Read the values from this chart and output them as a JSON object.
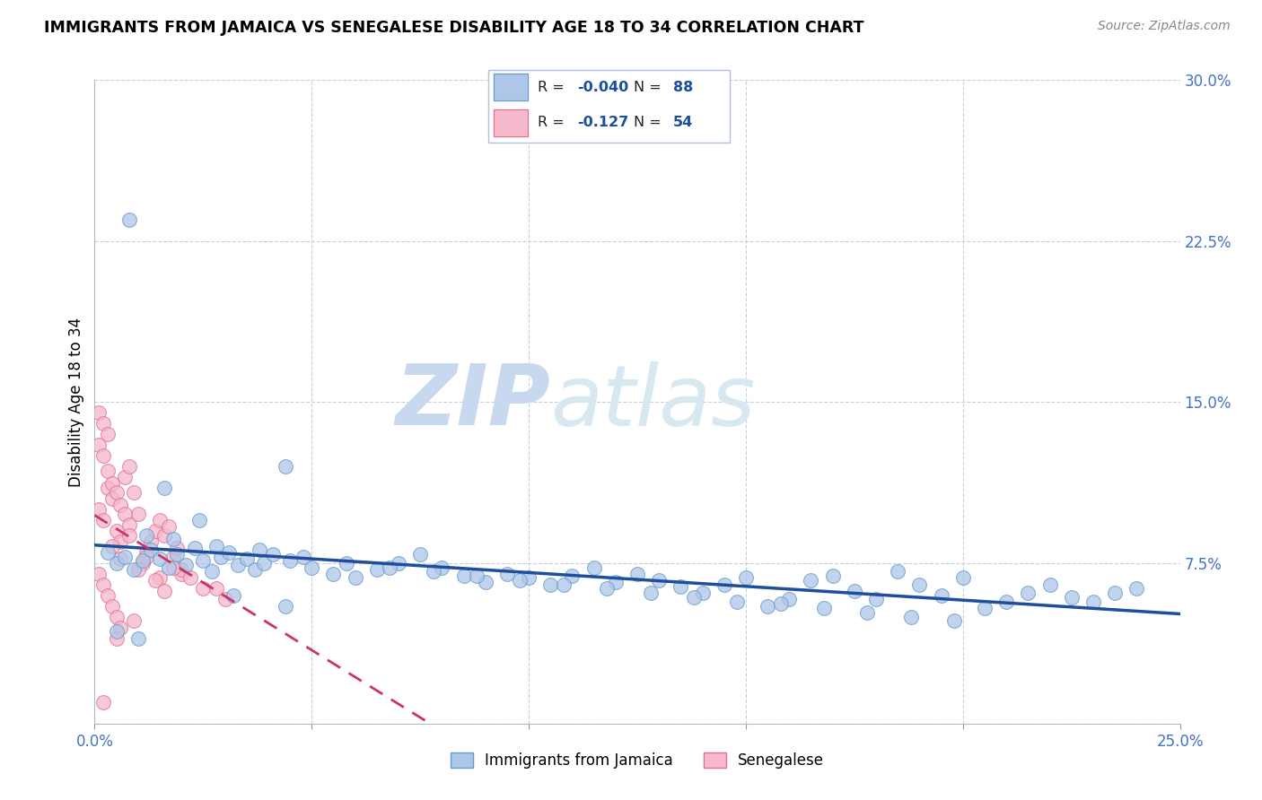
{
  "title": "IMMIGRANTS FROM JAMAICA VS SENEGALESE DISABILITY AGE 18 TO 34 CORRELATION CHART",
  "source": "Source: ZipAtlas.com",
  "ylabel": "Disability Age 18 to 34",
  "xlim": [
    0.0,
    0.25
  ],
  "ylim": [
    0.0,
    0.3
  ],
  "xticks": [
    0.0,
    0.05,
    0.1,
    0.15,
    0.2,
    0.25
  ],
  "yticks": [
    0.0,
    0.075,
    0.15,
    0.225,
    0.3
  ],
  "series1_name": "Immigrants from Jamaica",
  "series1_color": "#aec6e8",
  "series1_edge_color": "#6699cc",
  "series1_line_color": "#1f4e9c",
  "series1_R": -0.04,
  "series1_N": 88,
  "series2_name": "Senegalese",
  "series2_color": "#f5b8cc",
  "series2_edge_color": "#e07090",
  "series2_line_color": "#cc3366",
  "series2_R": -0.127,
  "series2_N": 54,
  "legend_color": "#1a4fa0",
  "watermark_zip": "ZIP",
  "watermark_atlas": "atlas",
  "watermark_color": "#c8d8ee",
  "background_color": "#ffffff",
  "grid_color": "#c8d0de",
  "title_fontsize": 12.5,
  "tick_label_color": "#4472c4",
  "jamaica_x": [
    0.003,
    0.005,
    0.007,
    0.009,
    0.011,
    0.013,
    0.015,
    0.017,
    0.019,
    0.021,
    0.023,
    0.025,
    0.027,
    0.029,
    0.031,
    0.033,
    0.035,
    0.037,
    0.039,
    0.041,
    0.045,
    0.05,
    0.055,
    0.06,
    0.065,
    0.07,
    0.075,
    0.08,
    0.085,
    0.09,
    0.095,
    0.1,
    0.105,
    0.11,
    0.115,
    0.12,
    0.125,
    0.13,
    0.135,
    0.14,
    0.145,
    0.15,
    0.155,
    0.16,
    0.165,
    0.17,
    0.175,
    0.18,
    0.185,
    0.19,
    0.195,
    0.2,
    0.205,
    0.21,
    0.215,
    0.22,
    0.225,
    0.23,
    0.235,
    0.24,
    0.012,
    0.018,
    0.028,
    0.038,
    0.048,
    0.058,
    0.068,
    0.078,
    0.088,
    0.098,
    0.108,
    0.118,
    0.128,
    0.138,
    0.148,
    0.158,
    0.168,
    0.178,
    0.188,
    0.198,
    0.008,
    0.016,
    0.024,
    0.032,
    0.044,
    0.044,
    0.005,
    0.01
  ],
  "jamaica_y": [
    0.08,
    0.075,
    0.078,
    0.072,
    0.076,
    0.081,
    0.077,
    0.073,
    0.079,
    0.074,
    0.082,
    0.076,
    0.071,
    0.078,
    0.08,
    0.074,
    0.077,
    0.072,
    0.075,
    0.079,
    0.076,
    0.073,
    0.07,
    0.068,
    0.072,
    0.075,
    0.079,
    0.073,
    0.069,
    0.066,
    0.07,
    0.068,
    0.065,
    0.069,
    0.073,
    0.066,
    0.07,
    0.067,
    0.064,
    0.061,
    0.065,
    0.068,
    0.055,
    0.058,
    0.067,
    0.069,
    0.062,
    0.058,
    0.071,
    0.065,
    0.06,
    0.068,
    0.054,
    0.057,
    0.061,
    0.065,
    0.059,
    0.057,
    0.061,
    0.063,
    0.088,
    0.086,
    0.083,
    0.081,
    0.078,
    0.075,
    0.073,
    0.071,
    0.069,
    0.067,
    0.065,
    0.063,
    0.061,
    0.059,
    0.057,
    0.056,
    0.054,
    0.052,
    0.05,
    0.048,
    0.235,
    0.11,
    0.095,
    0.06,
    0.12,
    0.055,
    0.043,
    0.04
  ],
  "senegal_x": [
    0.001,
    0.002,
    0.003,
    0.004,
    0.005,
    0.006,
    0.007,
    0.008,
    0.009,
    0.01,
    0.011,
    0.012,
    0.013,
    0.014,
    0.015,
    0.016,
    0.017,
    0.018,
    0.019,
    0.02,
    0.001,
    0.002,
    0.003,
    0.004,
    0.005,
    0.006,
    0.007,
    0.008,
    0.001,
    0.002,
    0.003,
    0.004,
    0.005,
    0.006,
    0.015,
    0.02,
    0.025,
    0.03,
    0.001,
    0.002,
    0.003,
    0.008,
    0.012,
    0.018,
    0.022,
    0.028,
    0.004,
    0.006,
    0.01,
    0.014,
    0.016,
    0.002,
    0.005,
    0.009
  ],
  "senegal_y": [
    0.1,
    0.095,
    0.11,
    0.105,
    0.09,
    0.085,
    0.115,
    0.12,
    0.108,
    0.098,
    0.075,
    0.08,
    0.085,
    0.09,
    0.095,
    0.088,
    0.092,
    0.078,
    0.082,
    0.07,
    0.13,
    0.125,
    0.118,
    0.112,
    0.108,
    0.102,
    0.098,
    0.093,
    0.07,
    0.065,
    0.06,
    0.055,
    0.05,
    0.045,
    0.068,
    0.072,
    0.063,
    0.058,
    0.145,
    0.14,
    0.135,
    0.088,
    0.078,
    0.073,
    0.068,
    0.063,
    0.083,
    0.077,
    0.072,
    0.067,
    0.062,
    0.01,
    0.04,
    0.048
  ]
}
